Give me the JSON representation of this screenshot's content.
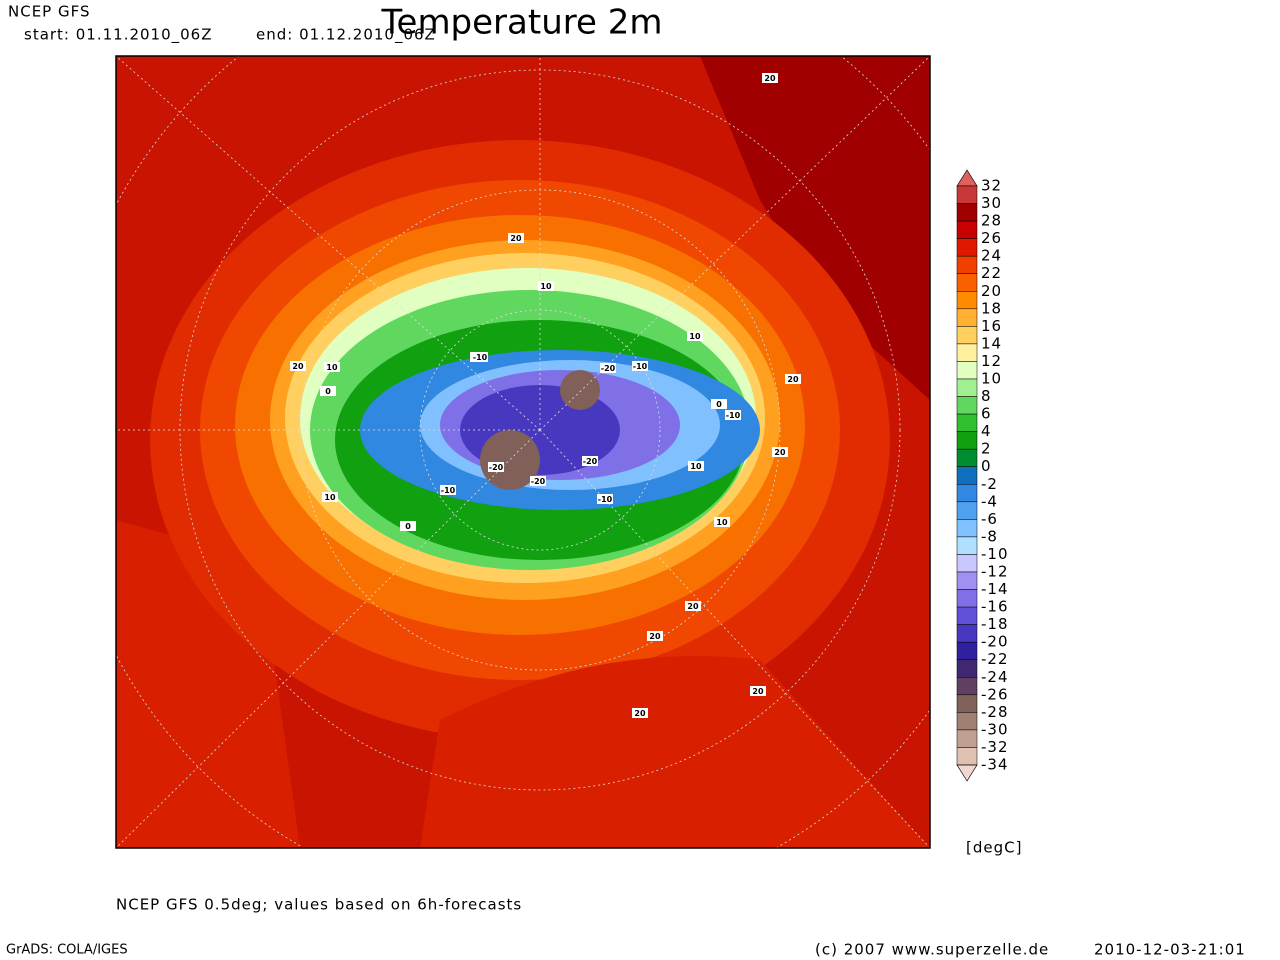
{
  "header": {
    "model": "NCEP GFS",
    "start": "start: 01.11.2010_06Z",
    "end": "end: 01.12.2010_06Z",
    "title": "Temperature 2m"
  },
  "map": {
    "contour_labels": [
      "20",
      "20",
      "10",
      "10",
      "0",
      "20",
      "10",
      "-10",
      "-20",
      "-10",
      "-20",
      "-20",
      "-10",
      "-20",
      "-10",
      "0",
      "-10",
      "10",
      "20",
      "20",
      "0",
      "10",
      "10",
      "10",
      "20",
      "20",
      "20",
      "20"
    ]
  },
  "colorbar": {
    "labels": [
      32,
      30,
      28,
      26,
      24,
      22,
      20,
      18,
      16,
      14,
      12,
      10,
      8,
      6,
      4,
      2,
      0,
      -2,
      -4,
      -6,
      -8,
      -10,
      -12,
      -14,
      -16,
      -18,
      -20,
      -22,
      -24,
      -26,
      -28,
      -30,
      -32,
      -34
    ],
    "colors": [
      "#e06060",
      "#c83838",
      "#a00000",
      "#c80000",
      "#e01800",
      "#f04000",
      "#f86000",
      "#ff8c00",
      "#ffb030",
      "#ffd060",
      "#fff0a0",
      "#e0ffc0",
      "#a0f090",
      "#60d860",
      "#30c030",
      "#10a010",
      "#008c30",
      "#1070c0",
      "#3088e0",
      "#50a0f0",
      "#80c0ff",
      "#b0e0ff",
      "#c8c8ff",
      "#a090f0",
      "#8070e8",
      "#6050d8",
      "#4838c0",
      "#3020a0",
      "#402870",
      "#604060",
      "#806058",
      "#a08070",
      "#c0a090",
      "#e0c0b0",
      "#f0d8d0"
    ],
    "unit": "[degC]"
  },
  "footer": {
    "note": "NCEP GFS 0.5deg; values based on 6h-forecasts",
    "software": "GrADS: COLA/IGES",
    "copyright": "(c) 2007 www.superzelle.de",
    "timestamp": "2010-12-03-21:01"
  }
}
